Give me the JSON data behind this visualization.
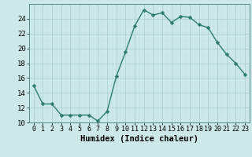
{
  "x": [
    0,
    1,
    2,
    3,
    4,
    5,
    6,
    7,
    8,
    9,
    10,
    11,
    12,
    13,
    14,
    15,
    16,
    17,
    18,
    19,
    20,
    21,
    22,
    23
  ],
  "y": [
    15,
    12.5,
    12.5,
    11,
    11,
    11,
    11,
    10.2,
    11.5,
    16.2,
    19.5,
    23,
    25.2,
    24.5,
    24.8,
    23.5,
    24.3,
    24.2,
    23.2,
    22.8,
    20.8,
    19.2,
    18.0,
    16.5
  ],
  "line_color": "#2d7d6e",
  "marker": "D",
  "marker_size": 2.5,
  "bg_color": "#cce8e8",
  "grid_major_color": "#b0cfcf",
  "grid_minor_color": "#c4e0e0",
  "xlabel": "Humidex (Indice chaleur)",
  "xlim": [
    -0.5,
    23.5
  ],
  "ylim": [
    10,
    26
  ],
  "yticks": [
    10,
    12,
    14,
    16,
    18,
    20,
    22,
    24
  ],
  "xticks": [
    0,
    1,
    2,
    3,
    4,
    5,
    6,
    7,
    8,
    9,
    10,
    11,
    12,
    13,
    14,
    15,
    16,
    17,
    18,
    19,
    20,
    21,
    22,
    23
  ],
  "xlabel_fontsize": 7.5,
  "tick_fontsize": 6.5,
  "linewidth": 1.0
}
